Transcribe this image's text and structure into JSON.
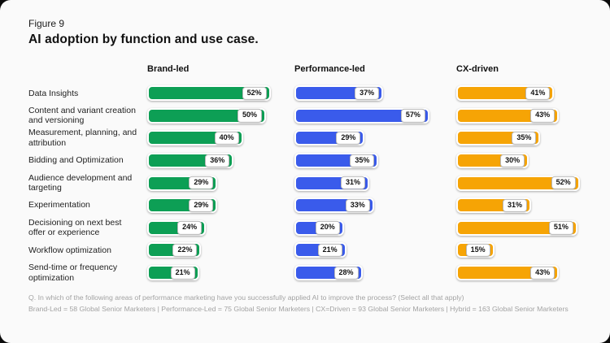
{
  "figure_label": "Figure 9",
  "title": "AI adoption by function and use case.",
  "colors": {
    "brand": "#0d9f55",
    "performance": "#3a5beb",
    "cx": "#f6a405",
    "card_bg": "#fafafa",
    "page_bg": "#0b0b0b",
    "badge_bg": "#ffffff",
    "badge_border": "#b9b9b9",
    "footer_text": "#a3a3a3"
  },
  "chart_data": {
    "type": "bar",
    "orientation": "horizontal",
    "unit": "%",
    "xlim": [
      0,
      60
    ],
    "grid": false,
    "legend_position": "column-headers",
    "value_labels": "white badge at end of each bar",
    "categories": [
      "Data Insights",
      "Content and variant creation and versioning",
      "Measurement, planning, and attribution",
      "Bidding and Optimization",
      "Audience development and targeting",
      "Experimentation",
      "Decisioning on next best offer or experience",
      "Workflow optimization",
      "Send-time or frequency optimization"
    ],
    "series": [
      {
        "name": "Brand-led",
        "color_key": "brand",
        "values": [
          52,
          50,
          40,
          36,
          29,
          29,
          24,
          22,
          21
        ]
      },
      {
        "name": "Performance-led",
        "color_key": "performance",
        "values": [
          37,
          57,
          29,
          35,
          31,
          33,
          20,
          21,
          28
        ]
      },
      {
        "name": "CX-driven",
        "color_key": "cx",
        "values": [
          41,
          43,
          35,
          30,
          52,
          31,
          51,
          15,
          43
        ]
      }
    ]
  },
  "footer": {
    "question": "Q. In which of the following areas of performance marketing have you successfully applied AI to improve the process? (Select all that apply)",
    "sample": "Brand-Led = 58 Global Senior Marketers | Performance-Led = 75 Global Senior Marketers | CX=Driven = 93 Global Senior Marketers | Hybrid = 163 Global Senior Marketers"
  }
}
